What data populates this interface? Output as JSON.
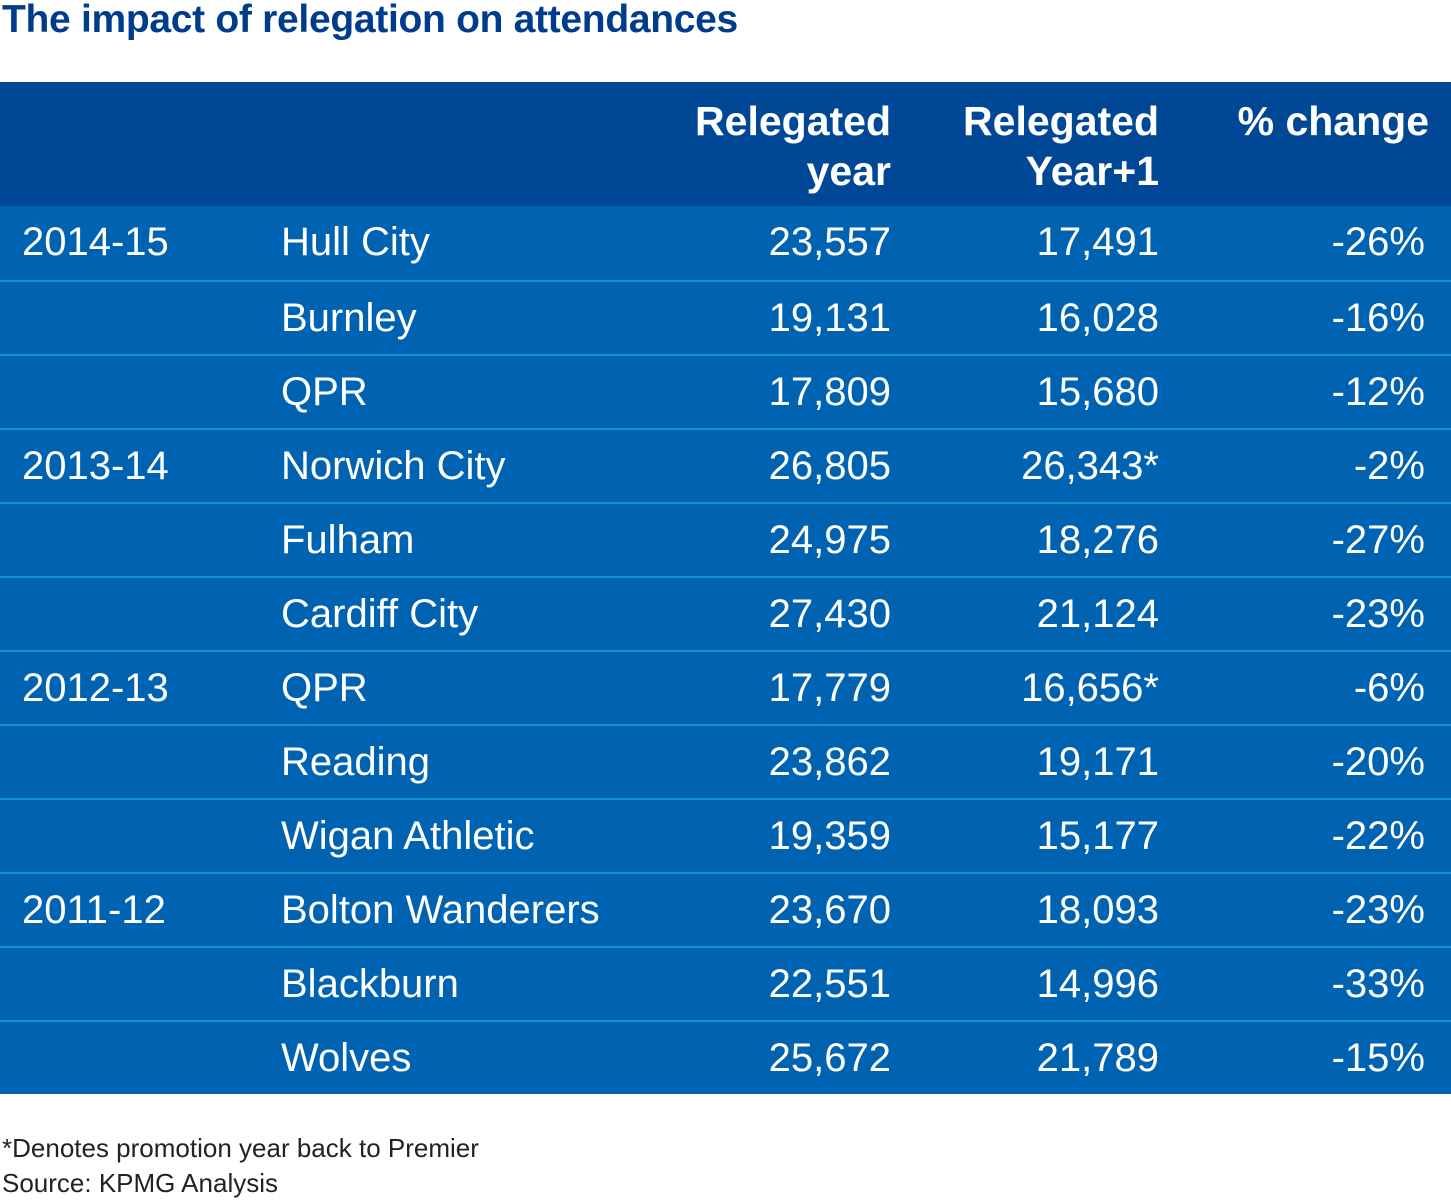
{
  "chart_data": {
    "type": "table",
    "title": "The impact of relegation on attendances",
    "columns": [
      "",
      "",
      "Relegated year",
      "Relegated Year+1",
      "% change"
    ],
    "header_lines": {
      "relegated_year": [
        "Relegated",
        "year"
      ],
      "relegated_year_plus_1": [
        "Relegated",
        "Year+1"
      ],
      "pct_change": [
        "% change"
      ]
    },
    "rows": [
      {
        "season": "2014-15",
        "club": "Hull City",
        "relegated_year": "23,557",
        "relegated_year_plus_1": "17,491",
        "pct_change": "-26%"
      },
      {
        "season": "",
        "club": "Burnley",
        "relegated_year": "19,131",
        "relegated_year_plus_1": "16,028",
        "pct_change": "-16%"
      },
      {
        "season": "",
        "club": "QPR",
        "relegated_year": "17,809",
        "relegated_year_plus_1": "15,680",
        "pct_change": "-12%"
      },
      {
        "season": "2013-14",
        "club": "Norwich City",
        "relegated_year": "26,805",
        "relegated_year_plus_1": "26,343*",
        "pct_change": "-2%"
      },
      {
        "season": "",
        "club": "Fulham",
        "relegated_year": "24,975",
        "relegated_year_plus_1": "18,276",
        "pct_change": "-27%"
      },
      {
        "season": "",
        "club": "Cardiff City",
        "relegated_year": "27,430",
        "relegated_year_plus_1": "21,124",
        "pct_change": "-23%"
      },
      {
        "season": "2012-13",
        "club": "QPR",
        "relegated_year": "17,779",
        "relegated_year_plus_1": "16,656*",
        "pct_change": "-6%"
      },
      {
        "season": "",
        "club": "Reading",
        "relegated_year": "23,862",
        "relegated_year_plus_1": "19,171",
        "pct_change": "-20%"
      },
      {
        "season": "",
        "club": "Wigan Athletic",
        "relegated_year": "19,359",
        "relegated_year_plus_1": "15,177",
        "pct_change": "-22%"
      },
      {
        "season": "2011-12",
        "club": "Bolton Wanderers",
        "relegated_year": "23,670",
        "relegated_year_plus_1": "18,093",
        "pct_change": "-23%"
      },
      {
        "season": "",
        "club": "Blackburn",
        "relegated_year": "22,551",
        "relegated_year_plus_1": "14,996",
        "pct_change": "-33%"
      },
      {
        "season": "",
        "club": "Wolves",
        "relegated_year": "25,672",
        "relegated_year_plus_1": "21,789",
        "pct_change": "-15%"
      }
    ],
    "footnotes": [
      "*Denotes promotion year back to Premier",
      "Source: KPMG Analysis"
    ]
  },
  "colors": {
    "title": "#003c8c",
    "header_bg": "#004896",
    "body_bg": "#0063b2",
    "row_separator": "#1490dc",
    "cell_text": "#ffffff",
    "footnote_text": "#222222"
  }
}
